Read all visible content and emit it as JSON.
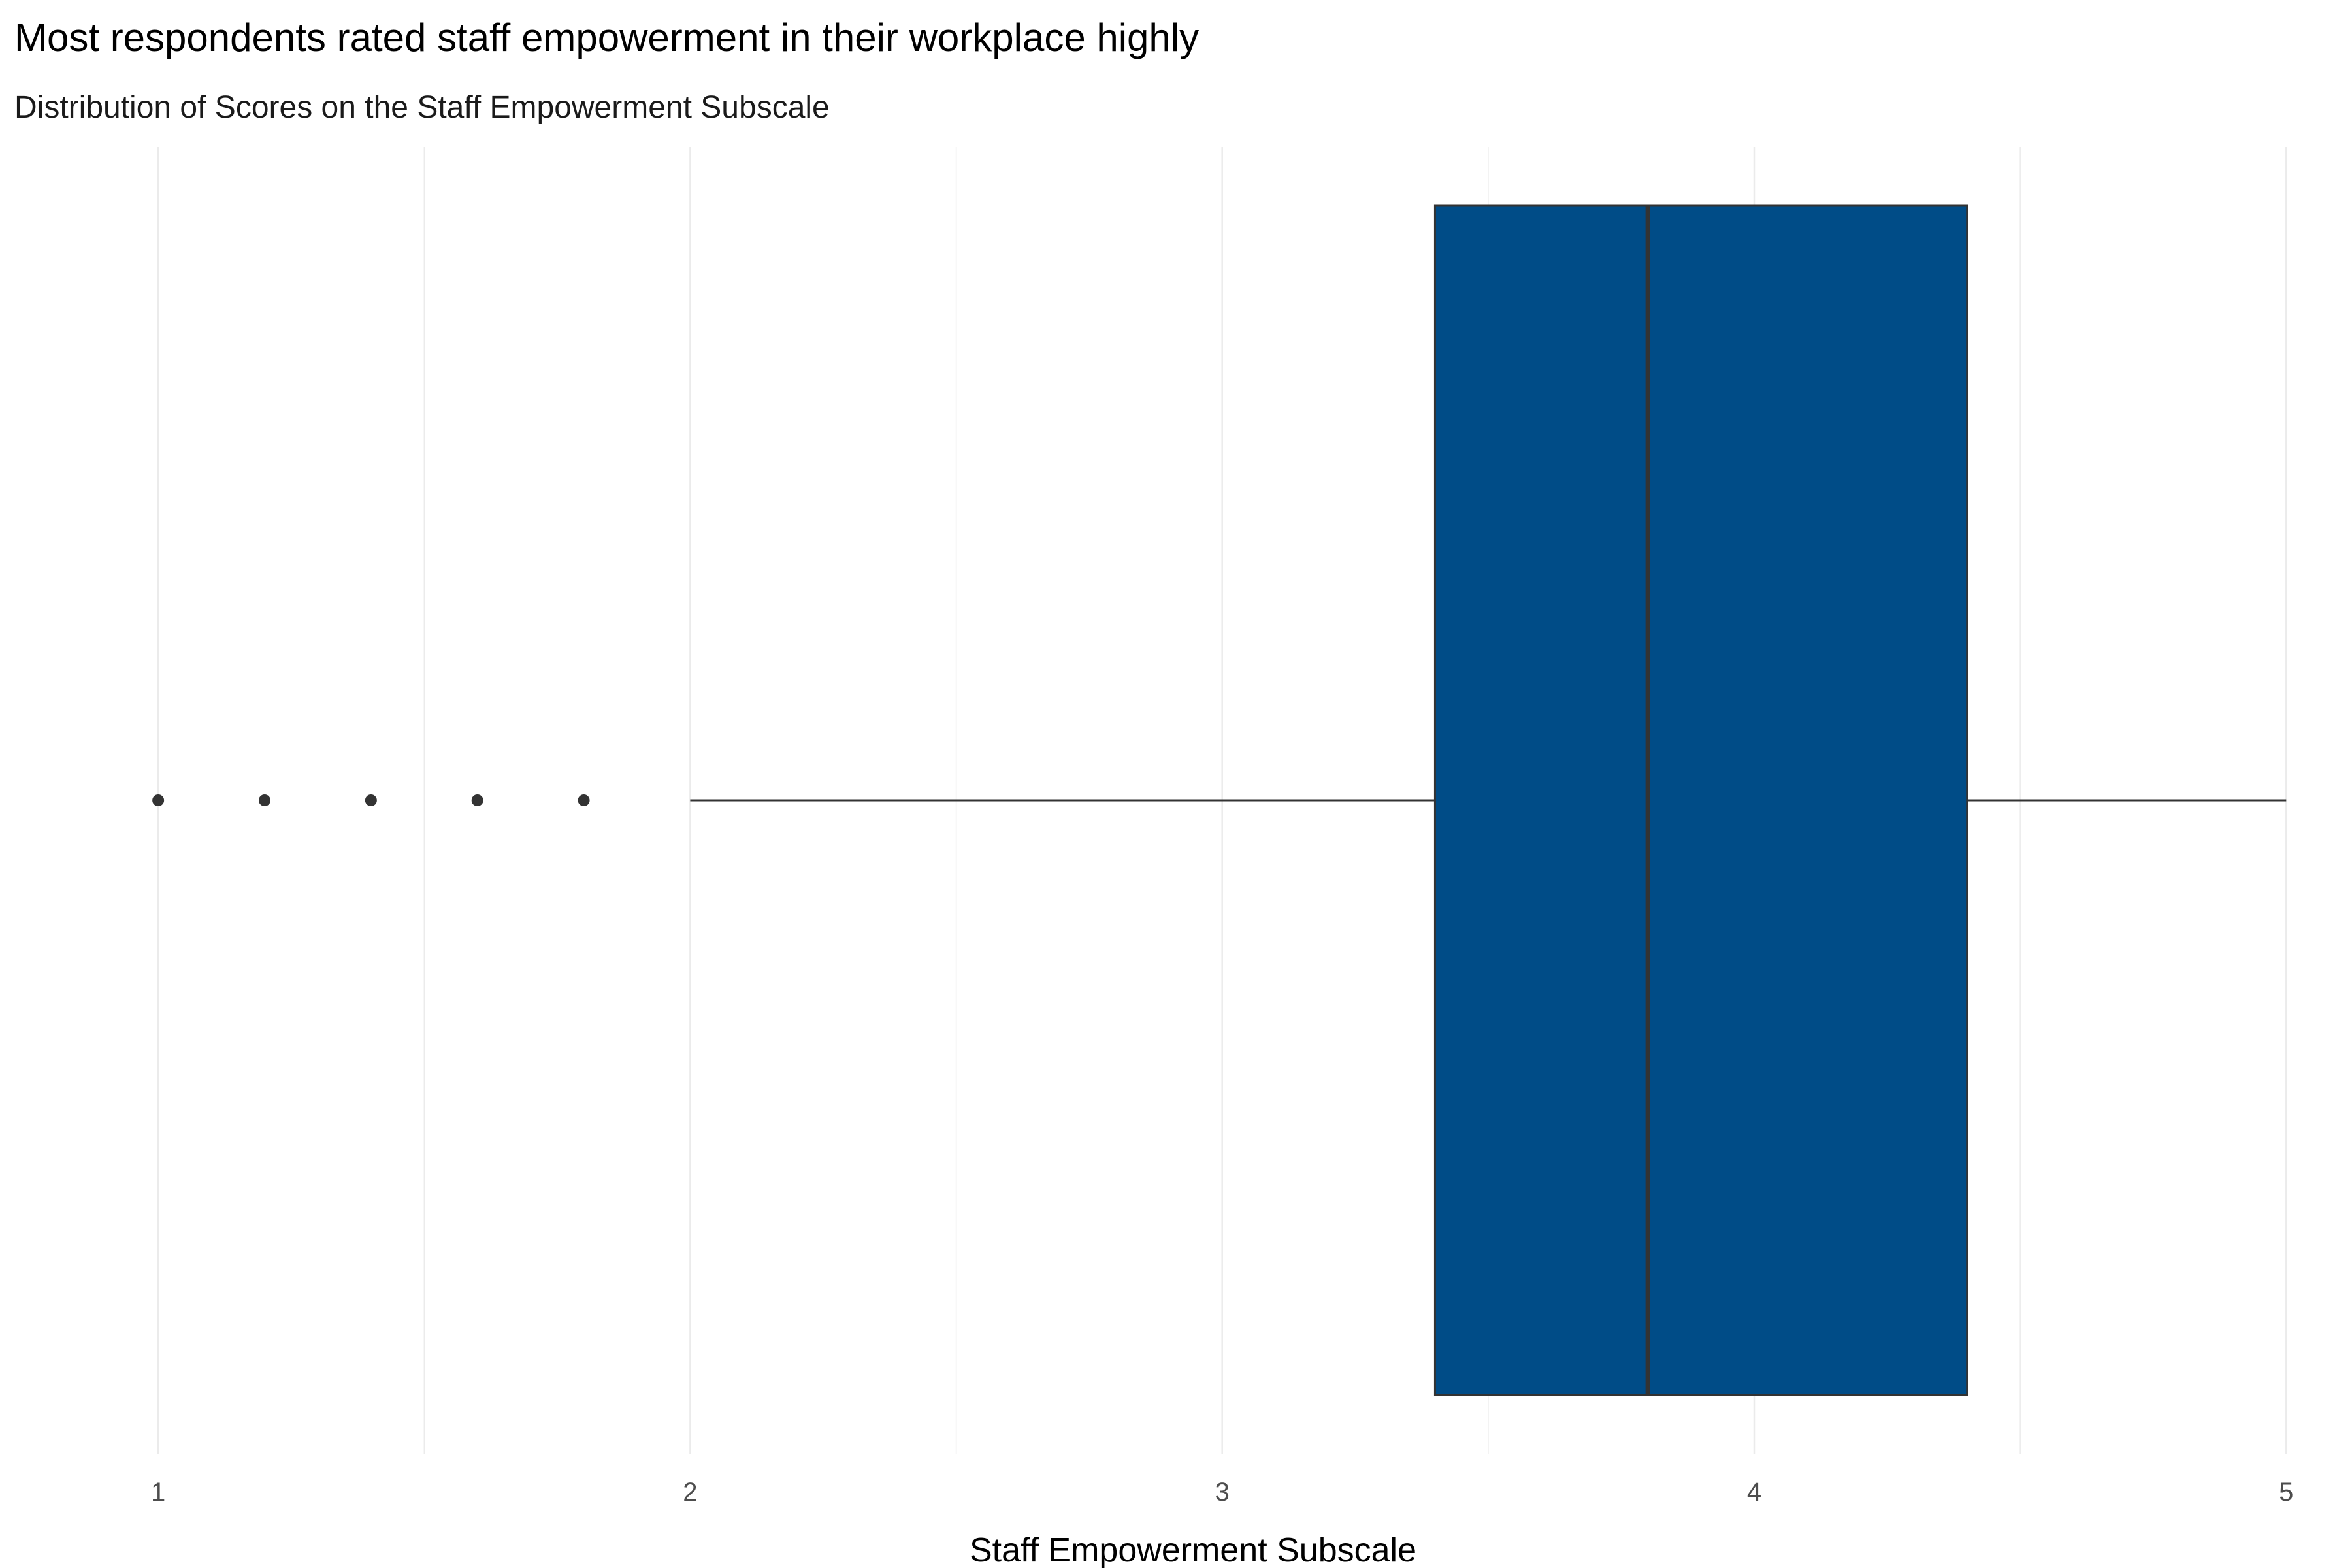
{
  "chart_data": {
    "type": "boxplot",
    "title": "Most respondents rated staff empowerment in their workplace highly",
    "subtitle": "Distribution of Scores on the Staff Empowerment Subscale",
    "xlabel": "Staff Empowerment Subscale",
    "ylabel": "",
    "xlim": [
      0.85,
      5.05
    ],
    "x_ticks": [
      1,
      2,
      3,
      4,
      5
    ],
    "x_tick_labels": [
      "1",
      "2",
      "3",
      "4",
      "5"
    ],
    "grid": {
      "major": true,
      "minor": true,
      "orientation": "vertical"
    },
    "legend": "none",
    "box": {
      "whisker_low": 2.0,
      "q1": 3.4,
      "median": 3.8,
      "q3": 4.4,
      "whisker_high": 5.0,
      "outliers": [
        1.0,
        1.2,
        1.4,
        1.6,
        1.8
      ]
    },
    "colors": {
      "box_fill": "#004C87",
      "box_border": "#333333",
      "whisker": "#333333",
      "outlier": "#333333",
      "grid": "#EBEBEB"
    }
  }
}
